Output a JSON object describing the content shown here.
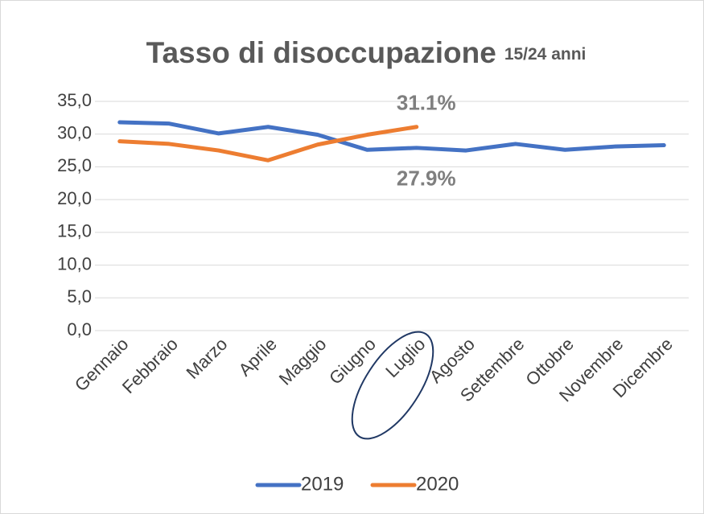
{
  "chart_data": {
    "type": "line",
    "title": "Tasso di disoccupazione",
    "subtitle": "15/24 anni",
    "categories": [
      "Gennaio",
      "Febbraio",
      "Marzo",
      "Aprile",
      "Maggio",
      "Giugno",
      "Luglio",
      "Agosto",
      "Settembre",
      "Ottobre",
      "Novembre",
      "Dicembre"
    ],
    "series": [
      {
        "name": "2019",
        "color": "#4472c4",
        "values": [
          31.8,
          31.6,
          30.1,
          31.1,
          29.9,
          27.6,
          27.9,
          27.5,
          28.5,
          27.6,
          28.1,
          28.3
        ],
        "value_labels": [
          null,
          null,
          null,
          null,
          null,
          null,
          "27.9%",
          null,
          null,
          null,
          null,
          null
        ]
      },
      {
        "name": "2020",
        "color": "#ed7d31",
        "values": [
          28.9,
          28.5,
          27.5,
          26.0,
          28.4,
          29.9,
          31.1,
          null,
          null,
          null,
          null,
          null
        ],
        "value_labels": [
          null,
          null,
          null,
          null,
          null,
          null,
          "31.1%",
          null,
          null,
          null,
          null,
          null
        ]
      }
    ],
    "ylim": [
      0,
      35
    ],
    "yticks": [
      {
        "value": 0,
        "label": "0,0"
      },
      {
        "value": 5,
        "label": "5,0"
      },
      {
        "value": 10,
        "label": "10,0"
      },
      {
        "value": 15,
        "label": "15,0"
      },
      {
        "value": 20,
        "label": "20,0"
      },
      {
        "value": 25,
        "label": "25,0"
      },
      {
        "value": 30,
        "label": "30,0"
      },
      {
        "value": 35,
        "label": "35,0"
      }
    ],
    "grid": true,
    "legend": "bottom"
  }
}
